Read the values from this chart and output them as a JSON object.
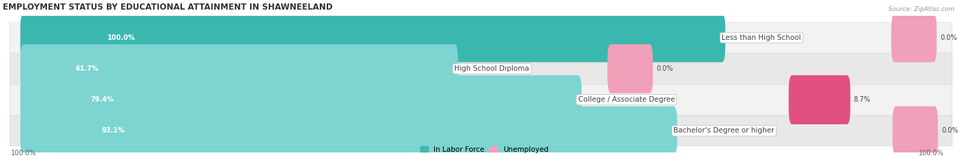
{
  "title": "EMPLOYMENT STATUS BY EDUCATIONAL ATTAINMENT IN SHAWNEELAND",
  "source": "Source: ZipAtlas.com",
  "categories": [
    "Less than High School",
    "High School Diploma",
    "College / Associate Degree",
    "Bachelor's Degree or higher"
  ],
  "in_labor_force": [
    100.0,
    61.7,
    79.4,
    93.1
  ],
  "unemployed": [
    0.0,
    0.0,
    8.7,
    0.0
  ],
  "labor_force_color_full": "#3ab8b0",
  "labor_force_color_partial": "#7dd4d0",
  "unemployed_color_small": "#f0a0b8",
  "unemployed_color_large": "#e05080",
  "row_bg_even": "#f2f2f2",
  "row_bg_odd": "#e8e8e8",
  "axis_label_left": "100.0%",
  "axis_label_right": "100.0%",
  "legend_labor": "In Labor Force",
  "legend_unemployed": "Unemployed",
  "max_val": 100.0,
  "title_fontsize": 8.5,
  "source_fontsize": 6.5,
  "bar_label_fontsize": 7,
  "category_fontsize": 7.5,
  "value_label_fontsize": 7,
  "axis_tick_fontsize": 7,
  "small_bar_width": 5.5,
  "bar_height": 0.58
}
